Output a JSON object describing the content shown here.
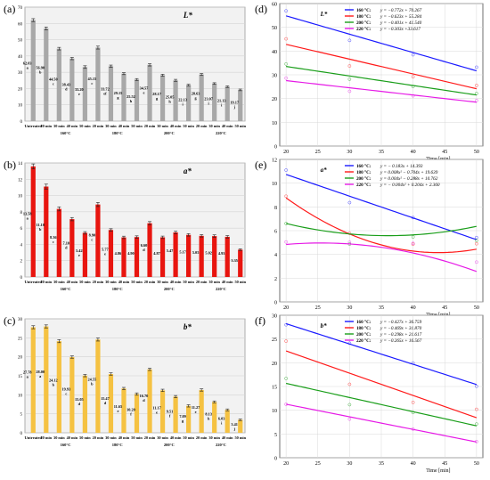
{
  "panels": {
    "a": "(a)",
    "b": "(b)",
    "c": "(c)",
    "d": "(d)",
    "e": "(e)",
    "f": "(f)"
  },
  "chart_data": [
    {
      "id": "a",
      "type": "bar",
      "title": "L*",
      "ylim": [
        0,
        70
      ],
      "yticks": [
        0,
        10,
        20,
        30,
        40,
        50,
        60,
        70
      ],
      "bar_color": "#a8a8a8",
      "values": [
        62.03,
        56.9,
        44.5,
        38.43,
        33.2,
        45.15,
        33.72,
        29.15,
        25.52,
        34.57,
        28.17,
        25.05,
        22.13,
        28.63,
        23.07,
        21.13,
        19.17
      ],
      "errors": [
        0.9,
        0.9,
        0.8,
        0.7,
        0.8,
        0.9,
        0.7,
        0.6,
        0.6,
        0.7,
        0.6,
        0.6,
        0.5,
        0.6,
        0.5,
        0.5,
        0.5
      ],
      "value_labels": [
        "62.03",
        "56.90",
        "44.50",
        "38.43",
        "33.20",
        "45.15",
        "33.72",
        "29.15",
        "25.52",
        "34.57",
        "28.17",
        "25.05",
        "22.13",
        "28.63",
        "23.07",
        "21.13",
        "19.17"
      ],
      "letters": [
        "a",
        "b",
        "c",
        "d",
        "e",
        "c",
        "ef",
        "g",
        "h",
        "e",
        "g",
        "h",
        "i",
        "g",
        "i",
        "i",
        "j"
      ],
      "sub_labels": [
        "",
        "20 min",
        "30 min",
        "40 min",
        "50 min",
        "20 min",
        "30 min",
        "40 min",
        "50 min",
        "20 min",
        "30 min",
        "40 min",
        "50 min",
        "20 min",
        "30 min",
        "40 min",
        "50 min"
      ],
      "group_labels": [
        "Untreated",
        "160°C",
        "180°C",
        "200°C",
        "220°C"
      ]
    },
    {
      "id": "b",
      "type": "bar",
      "title": "a*",
      "ylim": [
        0,
        14
      ],
      "yticks": [
        0,
        2,
        4,
        6,
        8,
        10,
        12,
        14
      ],
      "bar_color": "#e8150f",
      "values": [
        13.58,
        11.1,
        8.36,
        7.1,
        5.42,
        8.9,
        5.77,
        4.86,
        4.9,
        6.6,
        4.87,
        5.47,
        5.17,
        5.05,
        5.02,
        4.93,
        3.35
      ],
      "errors": [
        0.3,
        0.3,
        0.25,
        0.2,
        0.15,
        0.25,
        0.15,
        0.15,
        0.15,
        0.2,
        0.15,
        0.15,
        0.15,
        0.15,
        0.15,
        0.15,
        0.1
      ],
      "value_labels": [
        "13.58",
        "11.10",
        "8.36",
        "7.10",
        "5.42",
        "8.90",
        "5.77",
        "4.86",
        "4.90",
        "6.60",
        "4.87",
        "5.47",
        "5.17",
        "5.05",
        "5.02",
        "4.93",
        "3.35"
      ],
      "letters": [
        "a",
        "b",
        "c",
        "d",
        "e",
        "c",
        "e",
        "",
        "",
        "d",
        "",
        "",
        "",
        "",
        "",
        "",
        ""
      ],
      "sub_labels": [
        "",
        "20 min",
        "30 min",
        "40 min",
        "50 min",
        "20 min",
        "30 min",
        "40 min",
        "50 min",
        "20 min",
        "30 min",
        "40 min",
        "50 min",
        "20 min",
        "30 min",
        "40 min",
        "50 min"
      ],
      "group_labels": [
        "Untreated",
        "160°C",
        "180°C",
        "200°C",
        "220°C"
      ]
    },
    {
      "id": "c",
      "type": "bar",
      "title": "b*",
      "ylim": [
        0,
        30
      ],
      "yticks": [
        0,
        5,
        10,
        15,
        20,
        25,
        30
      ],
      "bar_color": "#f5c242",
      "values": [
        27.78,
        28.0,
        24.12,
        19.93,
        15.05,
        24.55,
        15.47,
        11.65,
        10.2,
        16.7,
        11.17,
        9.51,
        7.09,
        11.27,
        8.13,
        6.03,
        3.41
      ],
      "errors": [
        0.4,
        0.4,
        0.4,
        0.3,
        0.3,
        0.4,
        0.3,
        0.3,
        0.3,
        0.3,
        0.3,
        0.3,
        0.3,
        0.3,
        0.25,
        0.25,
        0.2
      ],
      "value_labels": [
        "27.78",
        "28.00",
        "24.12",
        "19.93",
        "15.05",
        "24.55",
        "15.47",
        "11.65",
        "10.20",
        "16.70",
        "11.17",
        "9.51",
        "7.09",
        "11.27",
        "8.13",
        "6.03",
        "3.41"
      ],
      "letters": [
        "a",
        "a",
        "b",
        "c",
        "d",
        "b",
        "d",
        "e",
        "f",
        "d",
        "e",
        "f",
        "g",
        "e",
        "h",
        "i",
        "j"
      ],
      "sub_labels": [
        "",
        "20 min",
        "30 min",
        "40 min",
        "50 min",
        "20 min",
        "30 min",
        "40 min",
        "50 min",
        "20 min",
        "30 min",
        "40 min",
        "50 min",
        "20 min",
        "30 min",
        "40 min",
        "50 min"
      ],
      "group_labels": [
        "Untreated",
        "160°C",
        "180°C",
        "200°C",
        "220°C"
      ]
    },
    {
      "id": "d",
      "type": "line",
      "title": "L*",
      "xlabel": "Time [min]",
      "xlim": [
        19,
        51
      ],
      "xticks": [
        20,
        25,
        30,
        35,
        40,
        45,
        50
      ],
      "ylim": [
        0,
        60
      ],
      "yticks": [
        0,
        10,
        20,
        30,
        40,
        50,
        60
      ],
      "fit": "linear",
      "series": [
        {
          "name": "160 °C:",
          "equation": "y = −0.772x + 70.267",
          "color": "#1a1aff",
          "a": 0,
          "b": -0.772,
          "c": 70.267,
          "points": [
            [
              20,
              56.9
            ],
            [
              30,
              44.5
            ],
            [
              40,
              38.43
            ],
            [
              50,
              33.2
            ]
          ]
        },
        {
          "name": "180 °C:",
          "equation": "y = −0.623x + 55.284",
          "color": "#ff1a1a",
          "a": 0,
          "b": -0.623,
          "c": 55.284,
          "points": [
            [
              20,
              45.15
            ],
            [
              30,
              33.72
            ],
            [
              40,
              29.15
            ],
            [
              50,
              25.52
            ]
          ]
        },
        {
          "name": "200 °C:",
          "equation": "y = −0.401x + 41.540",
          "color": "#1a9e1a",
          "a": 0,
          "b": -0.401,
          "c": 41.54,
          "points": [
            [
              20,
              34.57
            ],
            [
              30,
              28.17
            ],
            [
              40,
              25.05
            ],
            [
              50,
              22.13
            ]
          ]
        },
        {
          "name": "220 °C:",
          "equation": "y = −0.303x +33.617",
          "color": "#e61ae6",
          "a": 0,
          "b": -0.303,
          "c": 33.617,
          "points": [
            [
              20,
              28.63
            ],
            [
              30,
              23.07
            ],
            [
              40,
              21.13
            ],
            [
              50,
              19.17
            ]
          ]
        }
      ]
    },
    {
      "id": "e",
      "type": "line",
      "title": "a*",
      "xlabel": "Time [min]",
      "xlim": [
        19,
        51
      ],
      "xticks": [
        20,
        25,
        30,
        35,
        40,
        45,
        50
      ],
      "ylim": [
        0,
        12
      ],
      "yticks": [
        0,
        2,
        4,
        6,
        8,
        10,
        12
      ],
      "fit": "quadratic",
      "series": [
        {
          "name": "160 °C:",
          "equation": "y = − 0.183x + 14.393",
          "color": "#1a1aff",
          "a": 0,
          "b": -0.183,
          "c": 14.393,
          "points": [
            [
              20,
              11.1
            ],
            [
              30,
              8.36
            ],
            [
              40,
              7.1
            ],
            [
              50,
              5.42
            ]
          ]
        },
        {
          "name": "180 °C:",
          "equation": "y = 0.008x² − 0.704x + 19.639",
          "color": "#ff1a1a",
          "a": 0.008,
          "b": -0.704,
          "c": 19.639,
          "points": [
            [
              20,
              8.9
            ],
            [
              30,
              5.77
            ],
            [
              40,
              4.86
            ],
            [
              50,
              4.9
            ]
          ]
        },
        {
          "name": "200 °C:",
          "equation": "y = 0.004x² − 0.288x + 10.762",
          "color": "#1a9e1a",
          "a": 0.004,
          "b": -0.288,
          "c": 10.762,
          "points": [
            [
              20,
              6.6
            ],
            [
              30,
              4.87
            ],
            [
              40,
              5.47
            ],
            [
              50,
              5.17
            ]
          ]
        },
        {
          "name": "220 °C:",
          "equation": "y = − 0.004x² + 0.204x + 2.360",
          "color": "#e61ae6",
          "a": -0.004,
          "b": 0.204,
          "c": 2.36,
          "points": [
            [
              20,
              5.05
            ],
            [
              30,
              5.02
            ],
            [
              40,
              4.93
            ],
            [
              50,
              3.35
            ]
          ]
        }
      ]
    },
    {
      "id": "f",
      "type": "line",
      "title": "b*",
      "xlabel": "Time [min]",
      "xlim": [
        19,
        51
      ],
      "xticks": [
        20,
        25,
        30,
        35,
        40,
        45,
        50
      ],
      "ylim": [
        0,
        30
      ],
      "yticks": [
        0,
        5,
        10,
        15,
        20,
        25,
        30
      ],
      "fit": "linear",
      "series": [
        {
          "name": "160 °C:",
          "equation": "y = −0.427x + 36.759",
          "color": "#1a1aff",
          "a": 0,
          "b": -0.427,
          "c": 36.759,
          "points": [
            [
              20,
              28.0
            ],
            [
              30,
              24.12
            ],
            [
              40,
              19.93
            ],
            [
              50,
              15.05
            ]
          ]
        },
        {
          "name": "180 °C:",
          "equation": "y = −0.469x + 31.870",
          "color": "#ff1a1a",
          "a": 0,
          "b": -0.469,
          "c": 31.87,
          "points": [
            [
              20,
              24.55
            ],
            [
              30,
              15.47
            ],
            [
              40,
              11.65
            ],
            [
              50,
              10.2
            ]
          ]
        },
        {
          "name": "200 °C:",
          "equation": "y = −0.298x + 21.617",
          "color": "#1a9e1a",
          "a": 0,
          "b": -0.298,
          "c": 21.617,
          "points": [
            [
              20,
              16.7
            ],
            [
              30,
              11.17
            ],
            [
              40,
              9.51
            ],
            [
              50,
              7.09
            ]
          ]
        },
        {
          "name": "220 °C:",
          "equation": "y = −0.265x + 16.567",
          "color": "#e61ae6",
          "a": 0,
          "b": -0.265,
          "c": 16.567,
          "points": [
            [
              20,
              11.27
            ],
            [
              30,
              8.13
            ],
            [
              40,
              6.03
            ],
            [
              50,
              3.41
            ]
          ]
        }
      ]
    }
  ]
}
